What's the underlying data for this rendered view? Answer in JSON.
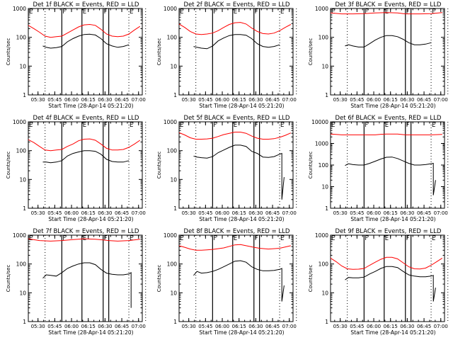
{
  "colors": {
    "events": "#000000",
    "lld": "#ff0000",
    "axes": "#000000"
  },
  "shared": {
    "xlabel": "Start Time (28-Apr-14 05:21:20)",
    "ylabel": "Counts/sec",
    "x_range_min": [
      0,
      102
    ],
    "x_tick_labels": [
      "05:30",
      "05:45",
      "06:00",
      "06:15",
      "06:30",
      "06:45",
      "07:00"
    ],
    "x_tick_minutes": [
      8.67,
      23.67,
      38.67,
      53.67,
      68.67,
      83.67,
      98.67
    ],
    "markers": [
      {
        "label": "E",
        "min": 0
      },
      {
        "label": "F",
        "min": 30
      },
      {
        "label": "E",
        "min": 48
      },
      {
        "label": "F",
        "min": 67
      },
      {
        "label": "E",
        "min": 90
      }
    ],
    "solid_lines_min": [
      30,
      48,
      67,
      72
    ],
    "dotted_lines_min": [
      15,
      90,
      105
    ]
  },
  "chart_data": [
    {
      "type": "line",
      "title": "Det 1f BLACK = Events, RED = LLD",
      "ylim": [
        1,
        1000
      ],
      "y_ticks": [
        "1",
        "10",
        "100",
        "1000"
      ],
      "series": [
        {
          "name": "LLD",
          "color": "red",
          "x": [
            0,
            5,
            10,
            15,
            20,
            25,
            30,
            35,
            40,
            45,
            50,
            55,
            60,
            65,
            70,
            75,
            80,
            85,
            90,
            95,
            100
          ],
          "values": [
            260,
            200,
            150,
            110,
            100,
            105,
            110,
            140,
            180,
            230,
            270,
            280,
            260,
            190,
            130,
            110,
            105,
            110,
            130,
            180,
            240
          ]
        },
        {
          "name": "Events",
          "color": "black",
          "x": [
            13,
            16,
            20,
            25,
            30,
            35,
            40,
            45,
            50,
            55,
            60,
            65,
            70,
            75,
            80,
            85,
            90
          ],
          "values": [
            50,
            45,
            42,
            44,
            48,
            70,
            90,
            110,
            125,
            128,
            120,
            90,
            60,
            50,
            45,
            48,
            55
          ]
        }
      ]
    },
    {
      "type": "line",
      "title": "Det 2f BLACK = Events, RED = LLD",
      "ylim": [
        1,
        1000
      ],
      "y_ticks": [
        "1",
        "10",
        "100",
        "1000"
      ],
      "series": [
        {
          "name": "LLD",
          "color": "red",
          "x": [
            0,
            5,
            10,
            15,
            20,
            25,
            30,
            35,
            40,
            45,
            50,
            55,
            60,
            65,
            70,
            75,
            80,
            85,
            90,
            95,
            100
          ],
          "values": [
            290,
            220,
            160,
            130,
            125,
            130,
            140,
            170,
            220,
            280,
            320,
            330,
            290,
            210,
            160,
            135,
            130,
            140,
            170,
            220,
            280
          ]
        },
        {
          "name": "Events",
          "color": "black",
          "x": [
            13,
            16,
            20,
            25,
            30,
            35,
            40,
            45,
            50,
            55,
            60,
            65,
            70,
            75,
            80,
            85,
            90
          ],
          "values": [
            48,
            45,
            42,
            40,
            50,
            75,
            95,
            115,
            125,
            125,
            118,
            90,
            60,
            48,
            45,
            48,
            55
          ]
        }
      ]
    },
    {
      "type": "line",
      "title": "Det 3f BLACK = Events, RED = LLD",
      "ylim": [
        1,
        1000
      ],
      "y_ticks": [
        "1",
        "10",
        "100",
        "1000"
      ],
      "series": [
        {
          "name": "LLD",
          "color": "red",
          "x": [
            0,
            10,
            20,
            30,
            40,
            50,
            60,
            67,
            72,
            80,
            90,
            100
          ],
          "values": [
            700,
            650,
            650,
            660,
            700,
            720,
            700,
            650,
            650,
            650,
            660,
            720
          ]
        },
        {
          "name": "Events",
          "color": "black",
          "x": [
            13,
            16,
            20,
            25,
            30,
            35,
            40,
            45,
            50,
            55,
            60,
            65,
            70,
            75,
            80,
            85,
            90
          ],
          "values": [
            50,
            55,
            50,
            46,
            46,
            60,
            80,
            100,
            115,
            115,
            105,
            85,
            65,
            55,
            55,
            58,
            65
          ]
        }
      ]
    },
    {
      "type": "line",
      "title": "Det 4f BLACK = Events, RED = LLD",
      "ylim": [
        1,
        1000
      ],
      "y_ticks": [
        "1",
        "10",
        "100",
        "1000"
      ],
      "series": [
        {
          "name": "LLD",
          "color": "red",
          "x": [
            0,
            5,
            10,
            15,
            20,
            25,
            30,
            35,
            40,
            45,
            50,
            55,
            60,
            65,
            70,
            75,
            80,
            85,
            90,
            95,
            100
          ],
          "values": [
            240,
            190,
            140,
            105,
            100,
            105,
            110,
            140,
            170,
            220,
            250,
            255,
            230,
            170,
            120,
            105,
            105,
            110,
            130,
            170,
            230
          ]
        },
        {
          "name": "Events",
          "color": "black",
          "x": [
            13,
            16,
            20,
            25,
            30,
            35,
            40,
            45,
            50,
            55,
            60,
            65,
            70,
            75,
            80,
            85,
            90
          ],
          "values": [
            40,
            40,
            38,
            40,
            45,
            65,
            80,
            90,
            100,
            100,
            95,
            75,
            50,
            42,
            40,
            40,
            45
          ]
        }
      ]
    },
    {
      "type": "line",
      "title": "Det 5f BLACK = Events, RED = LLD",
      "ylim": [
        1,
        1000
      ],
      "y_ticks": [
        "1",
        "10",
        "100",
        "1000"
      ],
      "series": [
        {
          "name": "LLD",
          "color": "red",
          "x": [
            0,
            5,
            10,
            15,
            20,
            25,
            30,
            35,
            40,
            45,
            50,
            55,
            60,
            65,
            70,
            75,
            80,
            85,
            90,
            95,
            100
          ],
          "values": [
            420,
            350,
            280,
            250,
            250,
            255,
            270,
            310,
            360,
            400,
            440,
            440,
            400,
            320,
            270,
            250,
            250,
            260,
            290,
            340,
            410
          ]
        },
        {
          "name": "Events",
          "color": "black",
          "x": [
            13,
            16,
            20,
            25,
            30,
            35,
            40,
            45,
            50,
            55,
            60,
            65,
            70,
            75,
            80,
            85,
            90,
            92,
            92.01,
            94
          ],
          "values": [
            65,
            60,
            57,
            55,
            62,
            85,
            105,
            130,
            155,
            155,
            140,
            95,
            80,
            60,
            58,
            62,
            75,
            80,
            2,
            12
          ]
        }
      ]
    },
    {
      "type": "line",
      "title": "Det 6f BLACK = Events, RED = LLD",
      "ylim": [
        1,
        10000
      ],
      "y_ticks": [
        "1",
        "10",
        "100",
        "1000",
        "10000"
      ],
      "series": [
        {
          "name": "LLD",
          "color": "red",
          "x": [
            0,
            5,
            10,
            20,
            30,
            40,
            45,
            50,
            60,
            67,
            72,
            80,
            90,
            100
          ],
          "values": [
            2700,
            2600,
            2500,
            2500,
            2500,
            2500,
            2650,
            2700,
            2700,
            2500,
            2500,
            2500,
            2500,
            2600
          ]
        },
        {
          "name": "Events",
          "color": "black",
          "x": [
            13,
            16,
            20,
            25,
            30,
            35,
            40,
            45,
            50,
            55,
            60,
            65,
            70,
            75,
            80,
            85,
            90,
            92,
            92.01,
            94
          ],
          "values": [
            95,
            115,
            105,
            100,
            100,
            120,
            150,
            190,
            230,
            235,
            200,
            155,
            120,
            100,
            100,
            105,
            115,
            120,
            4,
            20
          ]
        }
      ]
    },
    {
      "type": "line",
      "title": "Det 7f BLACK = Events, RED = LLD",
      "ylim": [
        1,
        1000
      ],
      "y_ticks": [
        "1",
        "10",
        "100",
        "1000"
      ],
      "series": [
        {
          "name": "LLD",
          "color": "red",
          "x": [
            0,
            10,
            20,
            30,
            40,
            50,
            60,
            67,
            72,
            80,
            90,
            100
          ],
          "values": [
            750,
            650,
            620,
            650,
            700,
            750,
            720,
            680,
            650,
            620,
            650,
            720
          ]
        },
        {
          "name": "Events",
          "color": "black",
          "x": [
            13,
            16,
            20,
            25,
            30,
            35,
            40,
            45,
            50,
            55,
            60,
            65,
            70,
            75,
            80,
            85,
            90,
            92,
            92.01
          ],
          "values": [
            32,
            42,
            40,
            38,
            50,
            70,
            85,
            100,
            110,
            110,
            95,
            65,
            48,
            44,
            42,
            42,
            45,
            50,
            3
          ]
        }
      ]
    },
    {
      "type": "line",
      "title": "Det 8f BLACK = Events, RED = LLD",
      "ylim": [
        1,
        1000
      ],
      "y_ticks": [
        "1",
        "10",
        "100",
        "1000"
      ],
      "series": [
        {
          "name": "LLD",
          "color": "red",
          "x": [
            0,
            5,
            10,
            15,
            20,
            25,
            30,
            40,
            50,
            55,
            60,
            67,
            72,
            80,
            90,
            100
          ],
          "values": [
            430,
            380,
            330,
            300,
            300,
            310,
            320,
            360,
            460,
            470,
            430,
            380,
            350,
            330,
            350,
            430
          ]
        },
        {
          "name": "Events",
          "color": "black",
          "x": [
            13,
            16,
            20,
            25,
            30,
            35,
            40,
            45,
            50,
            55,
            60,
            65,
            70,
            75,
            80,
            85,
            90,
            92,
            92.01,
            94
          ],
          "values": [
            40,
            55,
            48,
            50,
            55,
            65,
            80,
            100,
            125,
            130,
            115,
            80,
            65,
            58,
            58,
            60,
            65,
            70,
            5,
            18
          ]
        }
      ]
    },
    {
      "type": "line",
      "title": "Det 9f BLACK = Events, RED = LLD",
      "ylim": [
        1,
        1000
      ],
      "y_ticks": [
        "1",
        "10",
        "100",
        "1000"
      ],
      "series": [
        {
          "name": "LLD",
          "color": "red",
          "x": [
            0,
            5,
            10,
            15,
            20,
            25,
            30,
            35,
            40,
            45,
            50,
            55,
            60,
            65,
            70,
            75,
            80,
            85,
            90,
            95,
            100
          ],
          "values": [
            160,
            120,
            85,
            68,
            65,
            66,
            70,
            90,
            115,
            145,
            170,
            170,
            150,
            110,
            80,
            68,
            67,
            72,
            90,
            120,
            160
          ]
        },
        {
          "name": "Events",
          "color": "black",
          "x": [
            13,
            16,
            20,
            25,
            30,
            35,
            40,
            45,
            50,
            55,
            60,
            65,
            70,
            75,
            80,
            85,
            90,
            92,
            92.01,
            94
          ],
          "values": [
            28,
            34,
            33,
            33,
            35,
            45,
            55,
            70,
            82,
            82,
            75,
            55,
            42,
            38,
            36,
            36,
            38,
            40,
            5,
            15
          ]
        }
      ]
    }
  ]
}
